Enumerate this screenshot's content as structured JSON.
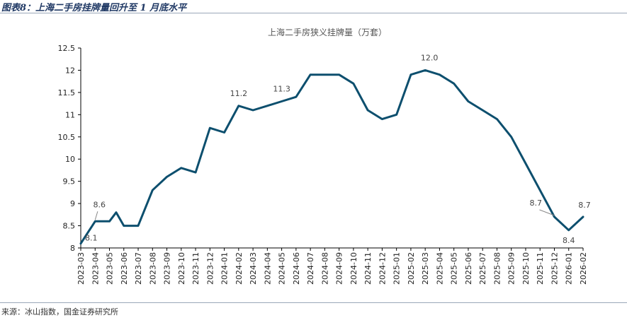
{
  "figure": {
    "title": "图表8：上海二手房挂牌量回升至 1 月底水平",
    "source": "来源：冰山指数，国金证券研究所"
  },
  "chart_data": {
    "type": "line",
    "title": "上海二手房狭义挂牌量（万套）",
    "xlabel": "",
    "ylabel": "",
    "ylim": [
      8,
      12.5
    ],
    "y_ticks": [
      8,
      8.5,
      9,
      9.5,
      10,
      10.5,
      11,
      11.5,
      12,
      12.5
    ],
    "y_tick_labels": [
      "8",
      "8.5",
      "9",
      "9.5",
      "10",
      "10.5",
      "11",
      "11.5",
      "12",
      "12.5"
    ],
    "x_tick_labels": [
      "2023-03",
      "2023-04",
      "2023-05",
      "2023-06",
      "2023-07",
      "2023-08",
      "2023-09",
      "2023-10",
      "2023-11",
      "2023-12",
      "2024-01",
      "2024-02",
      "2024-03",
      "2024-04",
      "2024-05",
      "2024-06",
      "2024-07",
      "2024-08",
      "2024-09",
      "2024-10",
      "2024-11",
      "2024-12",
      "2025-01",
      "2025-02",
      "2025-03",
      "2025-04",
      "2025-05",
      "2025-06",
      "2025-07",
      "2025-08",
      "2025-09",
      "2025-10",
      "2025-11",
      "2025-12",
      "2026-01",
      "2026-02"
    ],
    "series": [
      {
        "color": "#0d4f6e",
        "points": [
          [
            "2023-03",
            8.1
          ],
          [
            "2023-04",
            8.6
          ],
          [
            "2023-04-15",
            8.6
          ],
          [
            "2023-05",
            8.6
          ],
          [
            "2023-05-15",
            8.8
          ],
          [
            "2023-06",
            8.5
          ],
          [
            "2023-07",
            8.5
          ],
          [
            "2023-08",
            9.3
          ],
          [
            "2023-09",
            9.6
          ],
          [
            "2023-10",
            9.8
          ],
          [
            "2023-11",
            9.7
          ],
          [
            "2023-12",
            10.7
          ],
          [
            "2024-01",
            10.6
          ],
          [
            "2024-02",
            11.2
          ],
          [
            "2024-03",
            11.1
          ],
          [
            "2024-04",
            11.2
          ],
          [
            "2024-05",
            11.3
          ],
          [
            "2024-06",
            11.4
          ],
          [
            "2024-07",
            11.9
          ],
          [
            "2024-08",
            11.9
          ],
          [
            "2024-09",
            11.9
          ],
          [
            "2024-10",
            11.7
          ],
          [
            "2024-11",
            11.1
          ],
          [
            "2024-12",
            10.9
          ],
          [
            "2025-01",
            11.0
          ],
          [
            "2025-02",
            11.9
          ],
          [
            "2025-03",
            12.0
          ],
          [
            "2025-04",
            11.9
          ],
          [
            "2025-05",
            11.7
          ],
          [
            "2025-06",
            11.3
          ],
          [
            "2025-07",
            11.1
          ],
          [
            "2025-08",
            10.9
          ],
          [
            "2025-09",
            10.5
          ],
          [
            "2025-10",
            9.9
          ],
          [
            "2025-11",
            9.3
          ],
          [
            "2025-12",
            8.7
          ],
          [
            "2026-01",
            8.4
          ],
          [
            "2026-02",
            8.7
          ]
        ]
      }
    ],
    "annotations": [
      {
        "text": "8.1",
        "at": "2023-03",
        "value": 8.1
      },
      {
        "text": "8.6",
        "at": "2023-04",
        "value": 8.6
      },
      {
        "text": "11.2",
        "at": "2024-02",
        "value": 11.2
      },
      {
        "text": "11.3",
        "at": "2024-05",
        "value": 11.3
      },
      {
        "text": "12.0",
        "at": "2025-03",
        "value": 12.0
      },
      {
        "text": "8.7",
        "at": "2025-12",
        "value": 8.7
      },
      {
        "text": "8.4",
        "at": "2026-01",
        "value": 8.4
      },
      {
        "text": "8.7",
        "at": "2026-02",
        "value": 8.7
      }
    ],
    "grid": false,
    "legend": "none"
  }
}
